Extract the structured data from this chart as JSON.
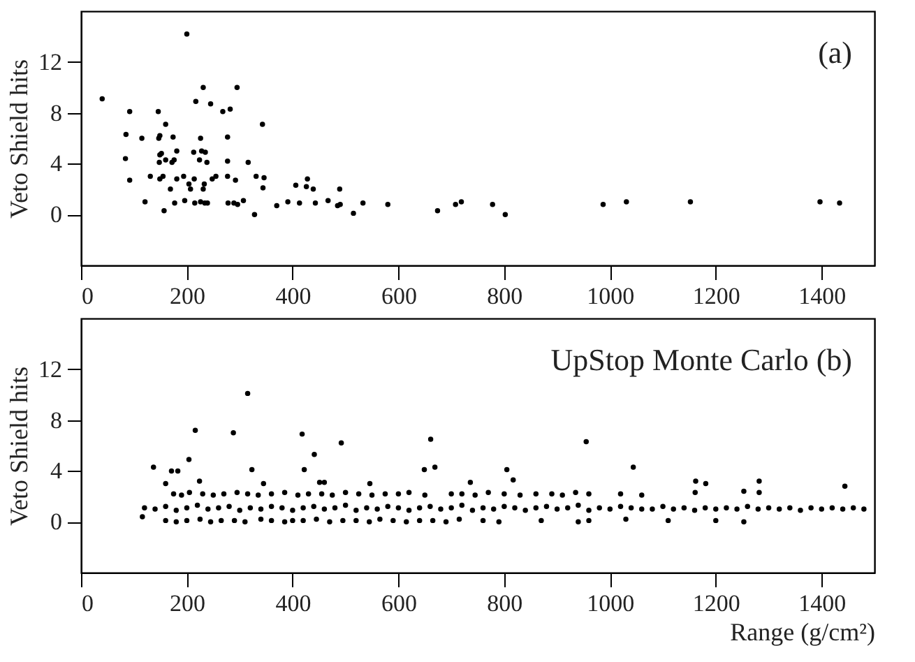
{
  "chart_data": [
    {
      "type": "scatter",
      "ylabel": "Veto Shield hits",
      "annotations": [
        "(a)"
      ],
      "color": "#000000",
      "marker": "circle",
      "xlim": [
        0,
        1500
      ],
      "xticks": [
        0,
        200,
        400,
        600,
        800,
        1000,
        1200,
        1400
      ],
      "ylim": [
        -4,
        16
      ],
      "yticks": [
        0,
        4,
        8,
        12
      ],
      "x": [
        40,
        92,
        85,
        84,
        92,
        115,
        121,
        131,
        146,
        147,
        149,
        149,
        152,
        148,
        149,
        155,
        157,
        160,
        160,
        169,
        172,
        176,
        174,
        181,
        181,
        177,
        194,
        196,
        200,
        204,
        207,
        214,
        215,
        213,
        217,
        224,
        226,
        228,
        226,
        231,
        231,
        233,
        235,
        238,
        234,
        239,
        245,
        248,
        255,
        268,
        277,
        277,
        277,
        278,
        282,
        289,
        292,
        295,
        296,
        307,
        316,
        328,
        331,
        343,
        346,
        344,
        370,
        391,
        413,
        406,
        426,
        428,
        439,
        443,
        467,
        485,
        490,
        489,
        515,
        533,
        580,
        674,
        708,
        719,
        778,
        802,
        987,
        1031,
        1152,
        1397,
        1434
      ],
      "values": [
        9.1,
        8.1,
        6.3,
        4.4,
        2.7,
        6.0,
        1.0,
        3.0,
        8.1,
        6.0,
        6.2,
        4.7,
        4.8,
        4.1,
        2.8,
        3.0,
        0.3,
        7.1,
        4.3,
        2.0,
        4.1,
        4.3,
        6.1,
        5.0,
        2.8,
        0.9,
        3.0,
        1.1,
        14.2,
        2.4,
        2.0,
        2.8,
        0.9,
        4.9,
        8.9,
        4.3,
        6.0,
        5.0,
        1.0,
        10.0,
        2.0,
        2.4,
        4.9,
        4.1,
        0.9,
        0.9,
        8.7,
        2.8,
        3.0,
        8.1,
        6.1,
        4.2,
        3.0,
        0.9,
        8.3,
        0.9,
        2.7,
        10.0,
        0.8,
        1.1,
        4.1,
        0.0,
        3.0,
        7.1,
        2.9,
        2.1,
        0.7,
        1.0,
        0.9,
        2.3,
        2.2,
        2.8,
        2.0,
        0.9,
        1.1,
        0.7,
        0.8,
        2.0,
        0.1,
        0.9,
        0.8,
        0.3,
        0.8,
        1.0,
        0.8,
        0.0,
        0.8,
        1.0,
        1.0,
        1.0,
        0.9
      ]
    },
    {
      "type": "scatter",
      "ylabel": "Veto Shield hits",
      "xlabel": "Range (g/cm²)",
      "annotations": [
        "UpStop Monte Carlo    (b)"
      ],
      "color": "#000000",
      "marker": "circle",
      "xlim": [
        0,
        1500
      ],
      "xticks": [
        0,
        200,
        400,
        600,
        800,
        1000,
        1200,
        1400
      ],
      "ylim": [
        -4,
        16
      ],
      "yticks": [
        0,
        4,
        8,
        12
      ],
      "x": [
        120,
        140,
        160,
        180,
        200,
        220,
        240,
        260,
        280,
        300,
        320,
        340,
        360,
        380,
        400,
        420,
        440,
        460,
        480,
        500,
        520,
        540,
        560,
        580,
        600,
        620,
        640,
        660,
        680,
        700,
        720,
        740,
        760,
        780,
        800,
        820,
        840,
        860,
        880,
        900,
        920,
        940,
        960,
        980,
        1000,
        1020,
        1040,
        1060,
        1080,
        1100,
        1120,
        1140,
        1160,
        1180,
        1200,
        1220,
        1240,
        1260,
        1280,
        1300,
        1320,
        1340,
        1360,
        1380,
        1400,
        1420,
        1440,
        1460,
        1480,
        175,
        190,
        205,
        230,
        250,
        270,
        295,
        315,
        335,
        360,
        385,
        410,
        430,
        455,
        475,
        500,
        525,
        550,
        575,
        600,
        620,
        650,
        700,
        720,
        745,
        770,
        800,
        830,
        860,
        890,
        910,
        935,
        960,
        1020,
        1060,
        160,
        180,
        200,
        225,
        245,
        265,
        290,
        310,
        340,
        360,
        385,
        400,
        420,
        445,
        470,
        495,
        520,
        545,
        565,
        590,
        615,
        640,
        665,
        690,
        715,
        760,
        790,
        870,
        940,
        960,
        1030,
        1110,
        1200,
        116,
        137,
        160,
        171,
        183,
        204,
        216,
        224,
        288,
        315,
        323,
        345,
        418,
        422,
        441,
        451,
        460,
        492,
        546,
        649,
        661,
        669,
        736,
        805,
        817,
        955,
        1044,
        1162,
        1181,
        1161,
        1253,
        1282,
        1282,
        1444,
        1253
      ],
      "values": [
        1.1,
        1.0,
        1.2,
        0.9,
        1.1,
        1.3,
        1.0,
        1.1,
        1.2,
        0.9,
        1.1,
        1.0,
        1.2,
        1.1,
        0.9,
        1.1,
        1.2,
        1.0,
        1.1,
        1.3,
        0.9,
        1.1,
        1.0,
        1.2,
        1.1,
        0.9,
        1.1,
        1.2,
        1.0,
        1.1,
        1.3,
        0.9,
        1.1,
        1.0,
        1.2,
        1.1,
        0.9,
        1.1,
        1.2,
        1.0,
        1.1,
        1.3,
        0.9,
        1.1,
        1.0,
        1.2,
        1.1,
        1.0,
        1.0,
        1.2,
        1.0,
        1.1,
        0.9,
        1.1,
        1.0,
        1.1,
        1.0,
        1.2,
        1.0,
        1.1,
        1.0,
        1.1,
        0.9,
        1.1,
        1.0,
        1.1,
        1.0,
        1.1,
        1.0,
        2.2,
        2.1,
        2.3,
        2.2,
        2.1,
        2.2,
        2.3,
        2.2,
        2.1,
        2.2,
        2.3,
        2.1,
        2.2,
        2.2,
        2.1,
        2.3,
        2.2,
        2.1,
        2.2,
        2.2,
        2.3,
        2.1,
        2.2,
        2.2,
        2.1,
        2.3,
        2.2,
        2.1,
        2.2,
        2.2,
        2.1,
        2.3,
        2.2,
        2.2,
        2.1,
        0.1,
        0.0,
        0.1,
        0.2,
        0.0,
        0.1,
        0.1,
        0.0,
        0.2,
        0.1,
        0.0,
        0.1,
        0.1,
        0.2,
        0.0,
        0.1,
        0.1,
        0.0,
        0.2,
        0.1,
        0.0,
        0.1,
        0.1,
        0.0,
        0.2,
        0.1,
        0.0,
        0.1,
        0.0,
        0.1,
        0.2,
        0.1,
        0.1,
        0.4,
        4.3,
        3.0,
        4.0,
        4.0,
        4.9,
        7.2,
        3.2,
        7.0,
        10.1,
        4.1,
        3.0,
        6.9,
        4.1,
        5.3,
        3.1,
        3.1,
        6.2,
        3.0,
        4.1,
        6.5,
        4.3,
        3.1,
        4.1,
        3.3,
        6.3,
        4.3,
        3.2,
        3.0,
        2.3,
        2.4,
        3.2,
        2.3,
        2.8,
        0.0
      ]
    }
  ]
}
